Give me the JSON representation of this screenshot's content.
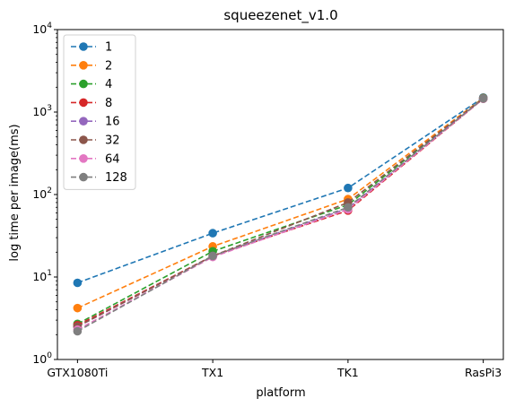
{
  "chart_data": {
    "type": "line",
    "title": "squeezenet_v1.0",
    "xlabel": "platform",
    "ylabel": "log time per image(ms)",
    "categories": [
      "GTX1080Ti",
      "TX1",
      "TK1",
      "RasPi3"
    ],
    "yscale": "log",
    "ylim": [
      1,
      10000
    ],
    "yticks": [
      {
        "value": 1,
        "base": "10",
        "exp": "0"
      },
      {
        "value": 10,
        "base": "10",
        "exp": "1"
      },
      {
        "value": 100,
        "base": "10",
        "exp": "2"
      },
      {
        "value": 1000,
        "base": "10",
        "exp": "3"
      },
      {
        "value": 10000,
        "base": "10",
        "exp": "4"
      }
    ],
    "line_style": "dashed",
    "marker": "circle",
    "legend_position": "top-left",
    "grid": false,
    "series": [
      {
        "name": "1",
        "color": "#1f77b4",
        "values": [
          8.5,
          34,
          120,
          1500
        ]
      },
      {
        "name": "2",
        "color": "#ff7f0e",
        "values": [
          4.2,
          23.5,
          88,
          1480
        ]
      },
      {
        "name": "4",
        "color": "#2ca02c",
        "values": [
          2.7,
          20.5,
          75,
          1470
        ]
      },
      {
        "name": "8",
        "color": "#d62728",
        "values": [
          2.6,
          18,
          64,
          1450
        ]
      },
      {
        "name": "16",
        "color": "#9467bd",
        "values": [
          2.5,
          18,
          68,
          1460
        ]
      },
      {
        "name": "32",
        "color": "#8c564b",
        "values": [
          2.5,
          18,
          80,
          1460
        ]
      },
      {
        "name": "64",
        "color": "#e377c2",
        "values": [
          2.3,
          17.5,
          66,
          1450
        ]
      },
      {
        "name": "128",
        "color": "#7f7f7f",
        "values": [
          2.2,
          18,
          70,
          1460
        ]
      }
    ]
  }
}
